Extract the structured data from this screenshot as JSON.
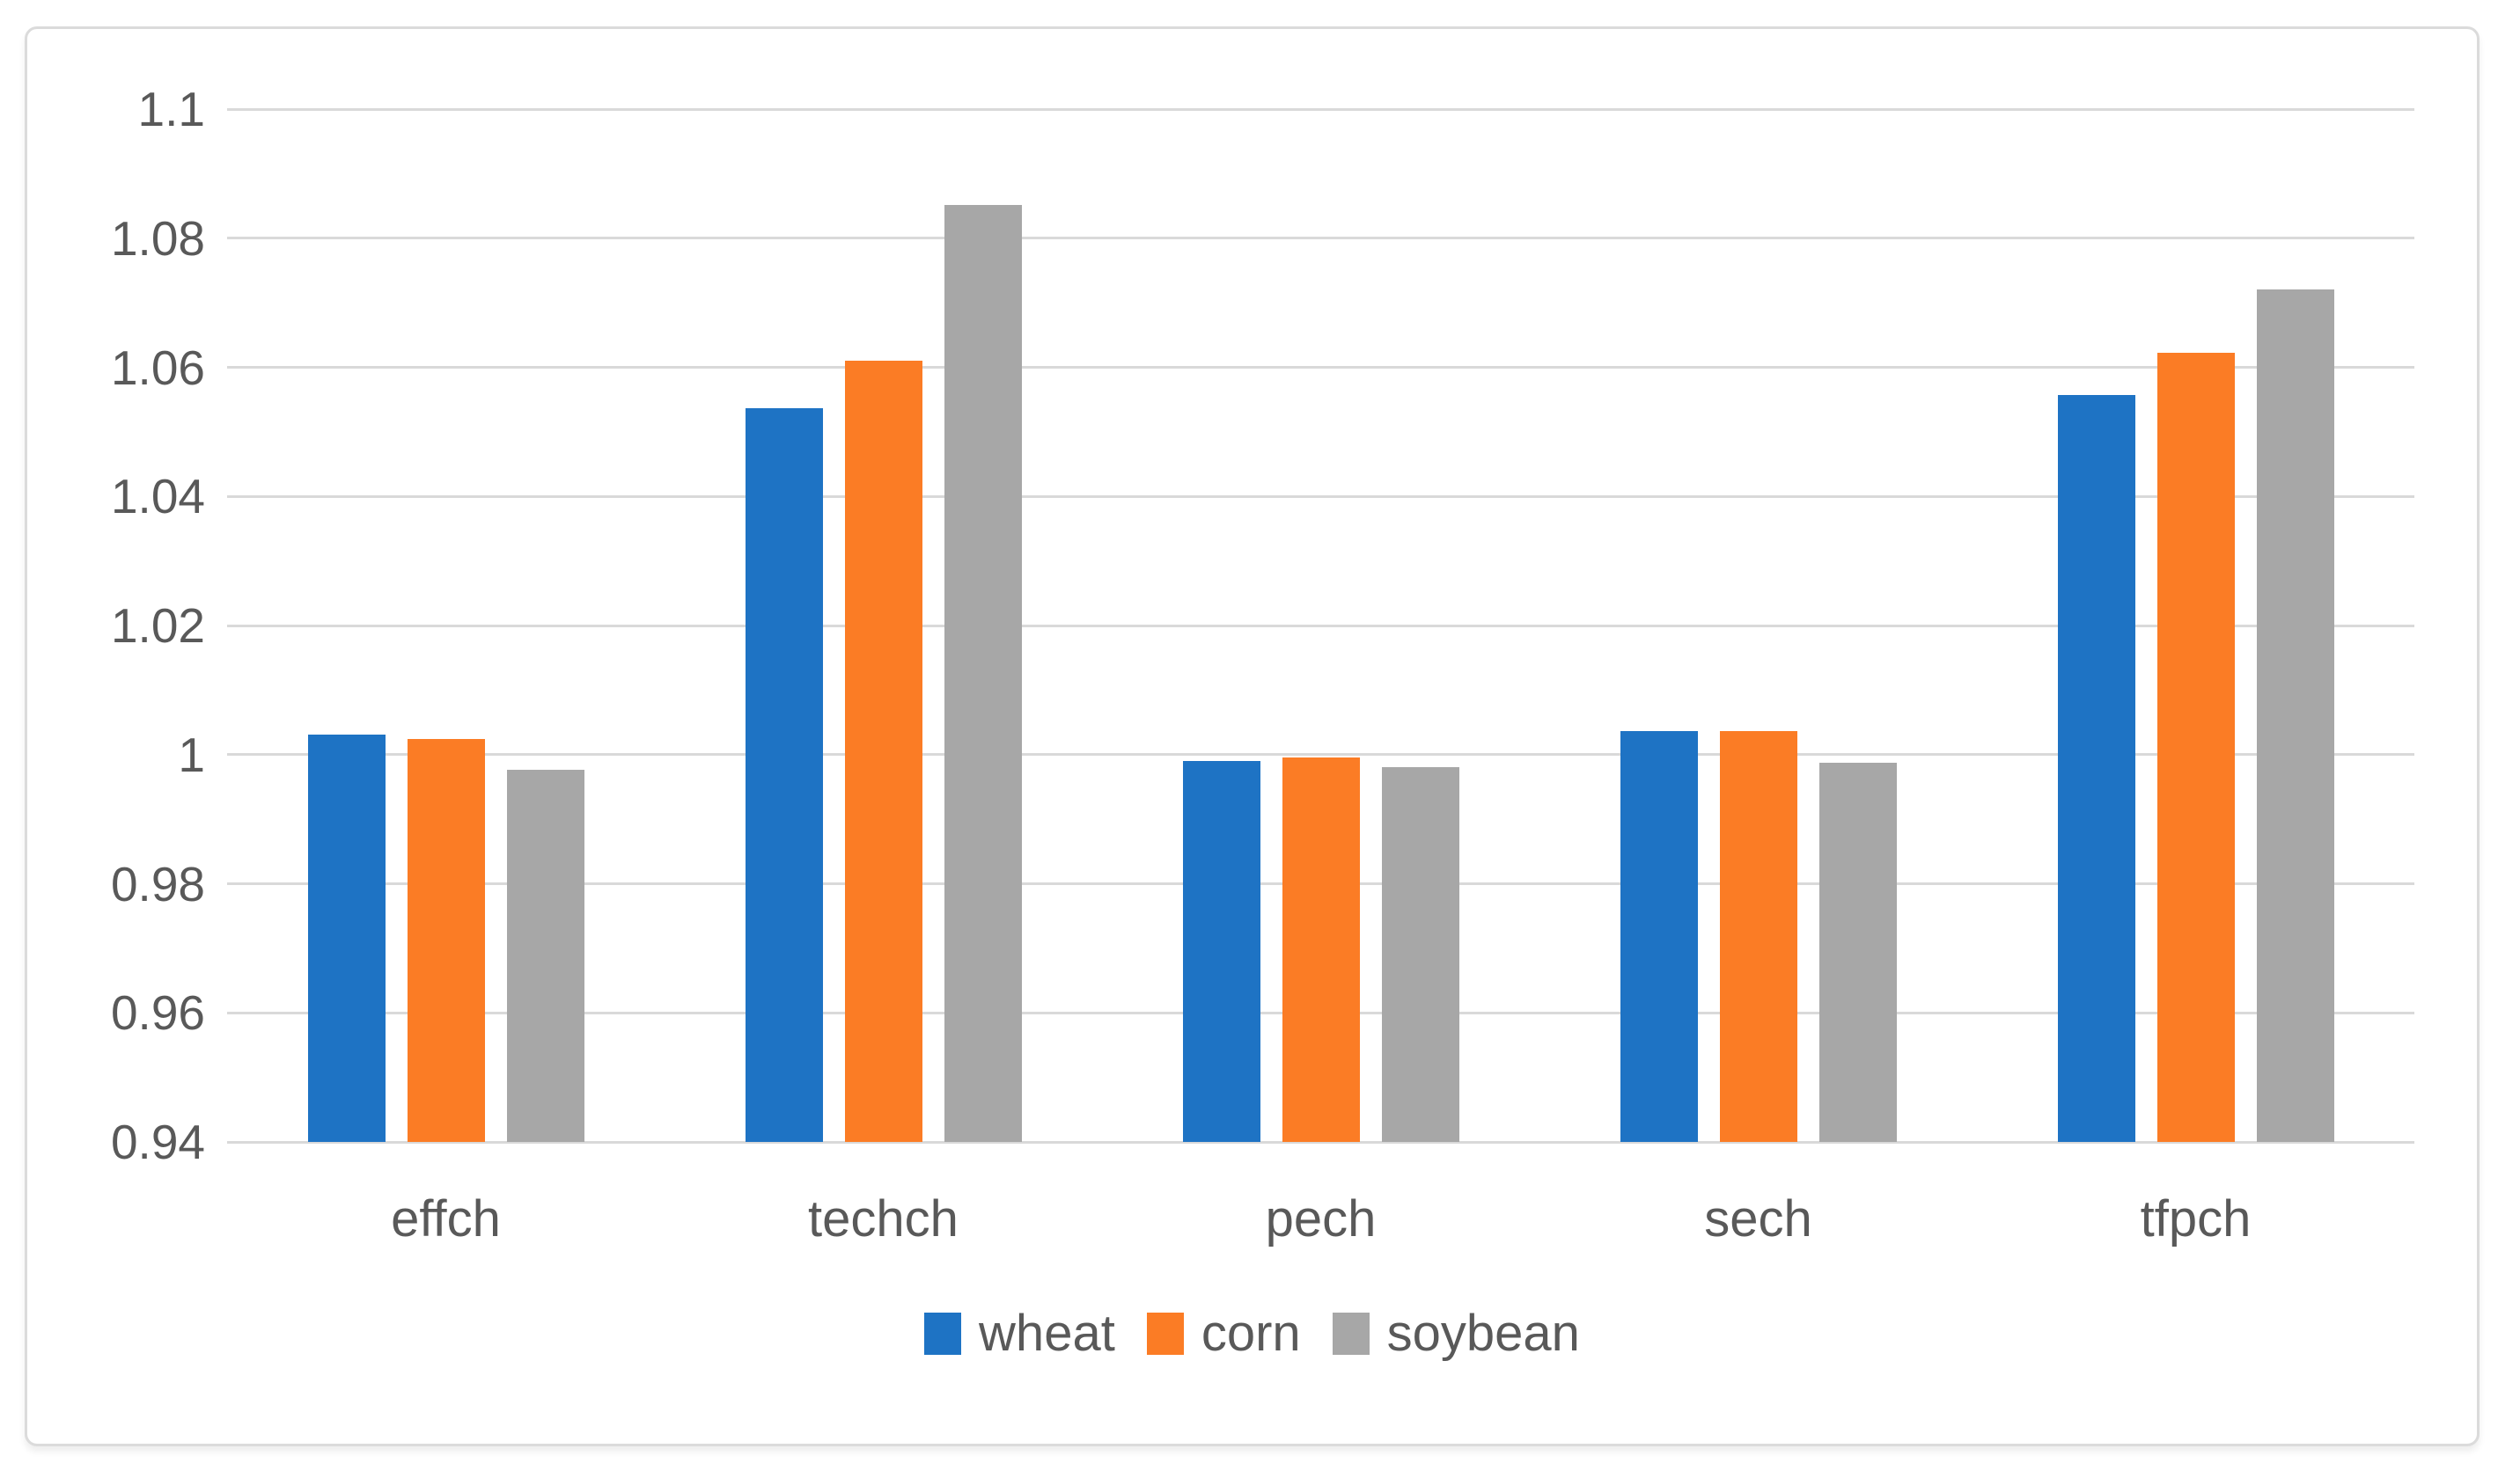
{
  "chart_data": {
    "type": "bar",
    "title": "",
    "xlabel": "",
    "ylabel": "",
    "categories": [
      "effch",
      "techch",
      "pech",
      "sech",
      "tfpch"
    ],
    "series": [
      {
        "name": "wheat",
        "color": "#1e73c4",
        "values": [
          1.0031,
          1.0537,
          0.999,
          1.0037,
          1.0557
        ]
      },
      {
        "name": "corn",
        "color": "#fb7c25",
        "values": [
          1.0024,
          1.061,
          0.9996,
          1.0036,
          1.0622
        ]
      },
      {
        "name": "soybean",
        "color": "#a7a7a7",
        "values": [
          0.9976,
          1.0852,
          0.9981,
          0.9988,
          1.072
        ]
      }
    ],
    "ylim": [
      0.94,
      1.1
    ],
    "yticks": [
      {
        "v": 1.1,
        "label": "1.1"
      },
      {
        "v": 1.08,
        "label": "1.08"
      },
      {
        "v": 1.06,
        "label": "1.06"
      },
      {
        "v": 1.04,
        "label": "1.04"
      },
      {
        "v": 1.02,
        "label": "1.02"
      },
      {
        "v": 1.0,
        "label": "1"
      },
      {
        "v": 0.98,
        "label": "0.98"
      },
      {
        "v": 0.96,
        "label": "0.96"
      },
      {
        "v": 0.94,
        "label": "0.94"
      }
    ],
    "grid": true,
    "legend_position": "bottom",
    "colors": {
      "gridline": "#d9d9d9",
      "axis_text": "#595959",
      "canvas_border": "#dbdbdb",
      "background": "#ffffff"
    }
  }
}
